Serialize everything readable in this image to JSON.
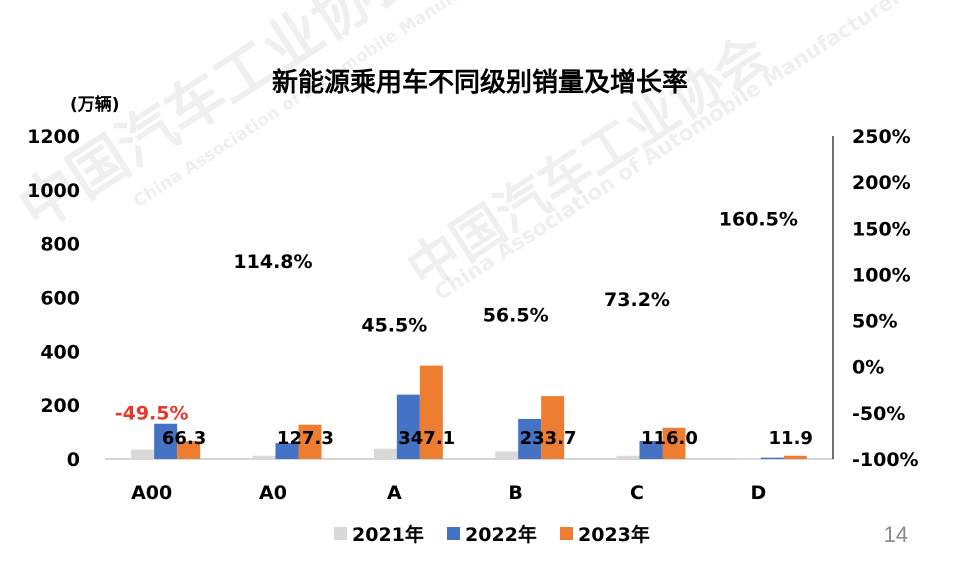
{
  "watermark": {
    "cn": "中国汽车工业协会",
    "en": "China Association of Automobile Manufacturers"
  },
  "page_number": "14",
  "chart_data": {
    "type": "bar",
    "title": "新能源乘用车不同级别销量及增长率",
    "ylabel": "(万辆)",
    "ylim": [
      0,
      1200
    ],
    "y_ticks": [
      "0",
      "200",
      "400",
      "600",
      "800",
      "1000",
      "1200"
    ],
    "y2lim": [
      -100,
      250
    ],
    "y2_ticks": [
      "-100%",
      "-50%",
      "0%",
      "50%",
      "100%",
      "150%",
      "200%",
      "250%"
    ],
    "categories": [
      "A00",
      "A0",
      "A",
      "B",
      "C",
      "D"
    ],
    "series": [
      {
        "name": "2021年",
        "color": "#d9d9d9",
        "values": [
          35,
          12,
          38,
          28,
          12,
          1
        ]
      },
      {
        "name": "2022年",
        "color": "#4472c4",
        "values": [
          131,
          59,
          239,
          149,
          67,
          5
        ]
      },
      {
        "name": "2023年",
        "color": "#ed7d31",
        "values": [
          66.3,
          127.3,
          347.1,
          233.7,
          116.0,
          11.9
        ]
      }
    ],
    "value_labels": [
      "66.3",
      "127.3",
      "347.1",
      "233.7",
      "116.0",
      "11.9"
    ],
    "growth_rates": [
      {
        "label": "-49.5%",
        "value": -49.5,
        "color": "#e8382c"
      },
      {
        "label": "114.8%",
        "value": 114.8,
        "color": "#000000"
      },
      {
        "label": "45.5%",
        "value": 45.5,
        "color": "#000000"
      },
      {
        "label": "56.5%",
        "value": 56.5,
        "color": "#000000"
      },
      {
        "label": "73.2%",
        "value": 73.2,
        "color": "#000000"
      },
      {
        "label": "160.5%",
        "value": 160.5,
        "color": "#000000"
      }
    ],
    "grid": false,
    "legend_position": "bottom"
  }
}
